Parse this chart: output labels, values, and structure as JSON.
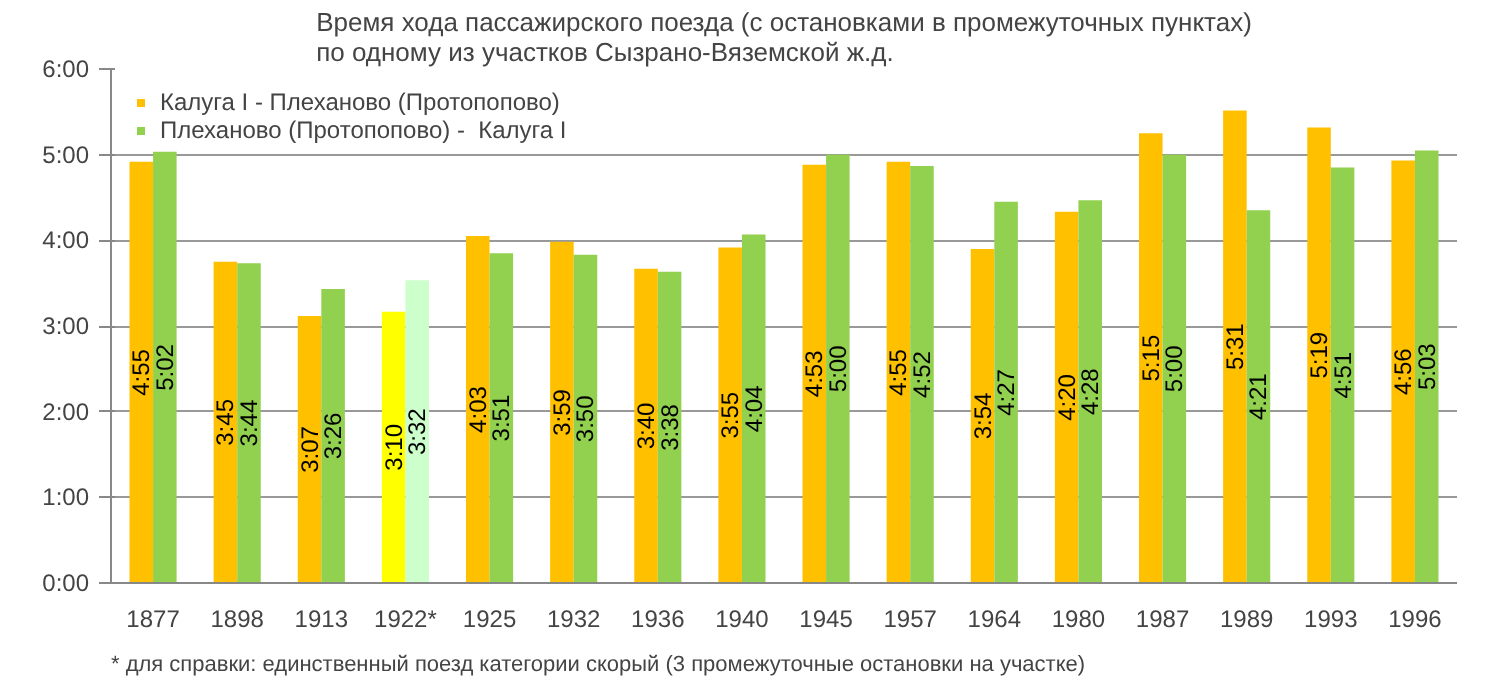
{
  "chart_data": {
    "type": "bar",
    "title": "Время хода пассажирского поезда (с остановками в промежуточных пунктах)\nпо одному из участков Сызрано-Вяземской ж.д.",
    "categories": [
      "1877",
      "1898",
      "1913",
      "1922*",
      "1925",
      "1932",
      "1936",
      "1940",
      "1945",
      "1957",
      "1964",
      "1980",
      "1987",
      "1989",
      "1993",
      "1996"
    ],
    "series": [
      {
        "name": "Калуга I - Плеханово (Протопопово)",
        "color": "#ffc000",
        "colors": [
          "#ffc000",
          "#ffc000",
          "#ffc000",
          "#ffff00",
          "#ffc000",
          "#ffc000",
          "#ffc000",
          "#ffc000",
          "#ffc000",
          "#ffc000",
          "#ffc000",
          "#ffc000",
          "#ffc000",
          "#ffc000",
          "#ffc000",
          "#ffc000"
        ],
        "values": [
          4.917,
          3.75,
          3.117,
          3.167,
          4.05,
          3.983,
          3.667,
          3.917,
          4.883,
          4.917,
          3.9,
          4.333,
          5.25,
          5.517,
          5.317,
          4.933
        ],
        "value_labels": [
          "4:55",
          "3:45",
          "3:07",
          "3:10",
          "4:03",
          "3:59",
          "3:40",
          "3:55",
          "4:53",
          "4:55",
          "3:54",
          "4:20",
          "5:15",
          "5:31",
          "5:19",
          "4:56"
        ]
      },
      {
        "name": "Плеханово (Протопопово) -  Калуга I",
        "color": "#92d050",
        "colors": [
          "#92d050",
          "#92d050",
          "#92d050",
          "#ccffcc",
          "#92d050",
          "#92d050",
          "#92d050",
          "#92d050",
          "#92d050",
          "#92d050",
          "#92d050",
          "#92d050",
          "#92d050",
          "#92d050",
          "#92d050",
          "#92d050"
        ],
        "values": [
          5.033,
          3.733,
          3.433,
          3.533,
          3.85,
          3.833,
          3.633,
          4.067,
          5.0,
          4.867,
          4.45,
          4.467,
          5.0,
          4.35,
          4.85,
          5.05
        ],
        "value_labels": [
          "5:02",
          "3:44",
          "3:26",
          "3:32",
          "3:51",
          "3:50",
          "3:38",
          "4:04",
          "5:00",
          "4:52",
          "4:27",
          "4:28",
          "5:00",
          "4:21",
          "4:51",
          "5:03"
        ]
      }
    ],
    "ylim": [
      0,
      6
    ],
    "yticks": [
      {
        "value": 0,
        "label": "0:00"
      },
      {
        "value": 1,
        "label": "1:00"
      },
      {
        "value": 2,
        "label": "2:00"
      },
      {
        "value": 3,
        "label": "3:00"
      },
      {
        "value": 4,
        "label": "4:00"
      },
      {
        "value": 5,
        "label": "5:00"
      },
      {
        "value": 6,
        "label": "6:00"
      }
    ],
    "grid": "y",
    "legend": "top left",
    "annotations": [
      "* для справки: единственный поезд категории скорый (3 промежуточные остановки на участке)"
    ]
  }
}
